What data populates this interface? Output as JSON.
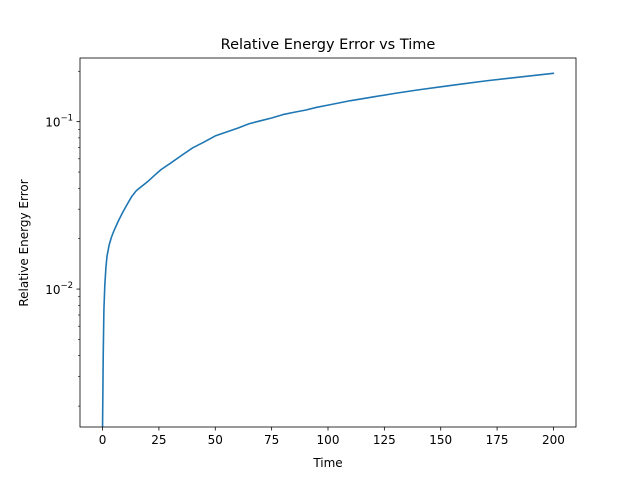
{
  "chart_data": {
    "type": "line",
    "title": "Relative Energy Error vs Time",
    "xlabel": "Time",
    "ylabel": "Relative Energy Error",
    "xlim": [
      -10,
      210
    ],
    "ylim": [
      0.0015,
      0.24
    ],
    "yscale": "log",
    "grid": false,
    "line_color": "#1f77b4",
    "x_ticks": [
      0,
      25,
      50,
      75,
      100,
      125,
      150,
      175,
      200
    ],
    "y_ticks": [
      {
        "value": 0.01,
        "base": "10",
        "exponent": "−2"
      },
      {
        "value": 0.1,
        "base": "10",
        "exponent": "−1"
      }
    ],
    "series": [
      {
        "x": [
          0.0,
          0.3,
          0.6,
          1,
          1.5,
          2,
          3,
          4,
          5,
          7,
          9,
          11,
          13,
          15,
          17,
          20,
          23,
          26,
          30,
          35,
          40,
          45,
          50,
          55,
          60,
          65,
          70,
          75,
          80,
          85,
          90,
          95,
          100,
          110,
          120,
          130,
          140,
          150,
          160,
          170,
          180,
          190,
          200
        ],
        "y": [
          0.0015,
          0.004,
          0.0075,
          0.0105,
          0.0135,
          0.0158,
          0.0185,
          0.0205,
          0.0222,
          0.0255,
          0.0288,
          0.0322,
          0.0358,
          0.0387,
          0.0407,
          0.0438,
          0.0477,
          0.0518,
          0.0563,
          0.0628,
          0.0698,
          0.0755,
          0.0822,
          0.0868,
          0.0915,
          0.0972,
          0.1012,
          0.1052,
          0.1102,
          0.1138,
          0.1172,
          0.1218,
          0.1255,
          0.1335,
          0.1405,
          0.1478,
          0.1548,
          0.1615,
          0.1682,
          0.1752,
          0.1815,
          0.1878,
          0.1945
        ]
      }
    ]
  }
}
